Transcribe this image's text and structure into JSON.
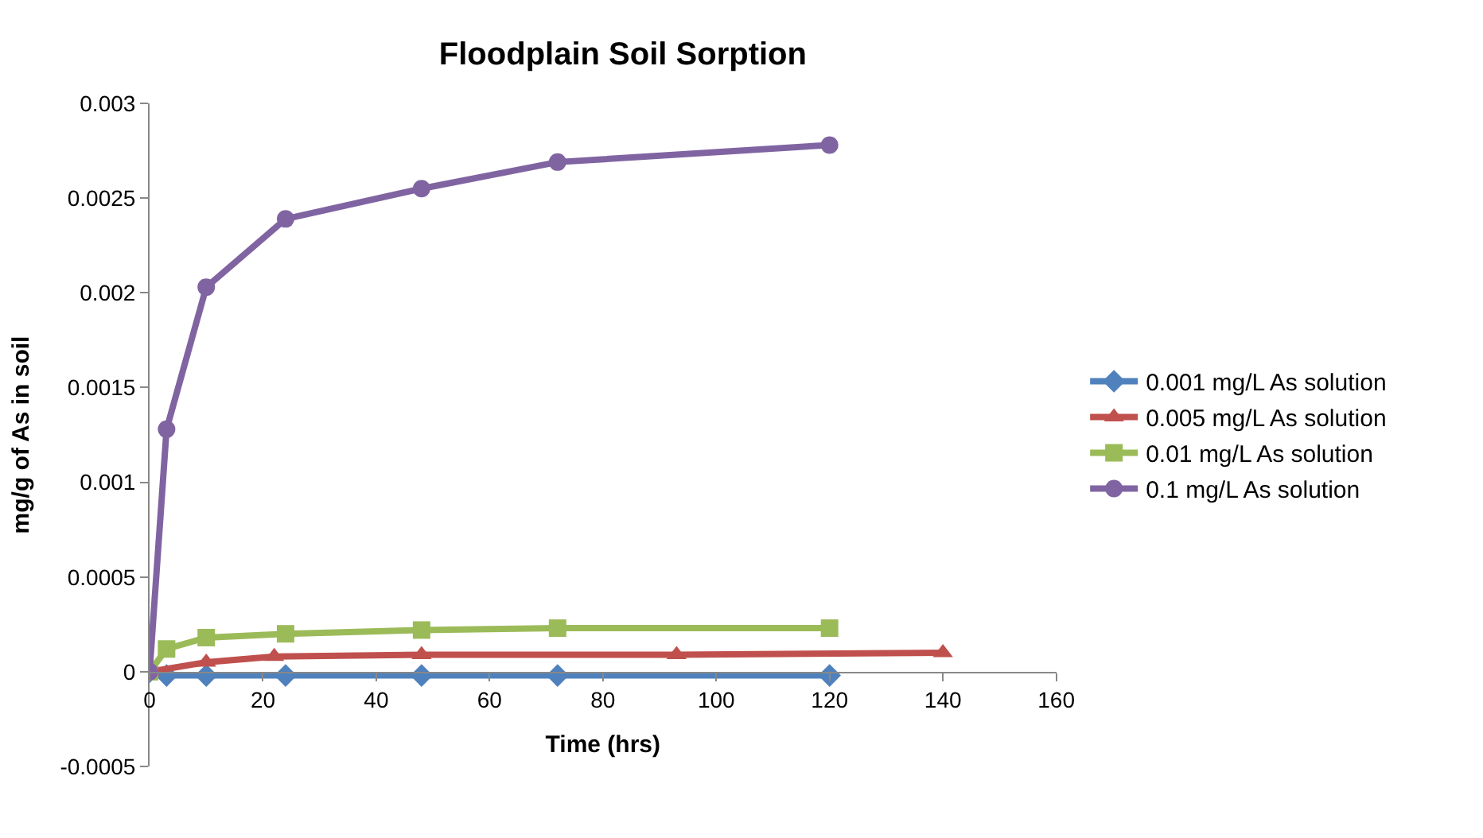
{
  "chart_data": {
    "type": "line",
    "title": "Floodplain Soil Sorption",
    "xlabel": "Time (hrs)",
    "ylabel": "mg/g of As in soil",
    "xlim": [
      0,
      160
    ],
    "xticks": [
      0,
      20,
      40,
      60,
      80,
      100,
      120,
      140,
      160
    ],
    "ylim": [
      -0.0005,
      0.003
    ],
    "yticks": [
      -0.0005,
      0,
      0.0005,
      0.001,
      0.0015,
      0.002,
      0.0025,
      0.003
    ],
    "grid": false,
    "legend": "right",
    "series": [
      {
        "name": "0.001 mg/L As solution",
        "color": "#4f81bd",
        "marker": "diamond",
        "x": [
          0,
          3,
          10,
          24,
          48,
          72,
          120
        ],
        "values": [
          0,
          -2e-05,
          -2e-05,
          -2e-05,
          -2e-05,
          -2e-05,
          -2e-05
        ]
      },
      {
        "name": "0.005 mg/L As solution",
        "color": "#c0504d",
        "marker": "triangle",
        "x": [
          0,
          10,
          22,
          48,
          93,
          140
        ],
        "values": [
          0,
          5e-05,
          8e-05,
          9e-05,
          9e-05,
          0.0001
        ]
      },
      {
        "name": "0.01 mg/L As solution",
        "color": "#9bbb59",
        "marker": "square",
        "x": [
          0,
          3,
          10,
          24,
          48,
          72,
          120
        ],
        "values": [
          0,
          0.00012,
          0.00018,
          0.0002,
          0.00022,
          0.00023,
          0.00023
        ]
      },
      {
        "name": "0.1 mg/L As solution",
        "color": "#8064a2",
        "marker": "circle",
        "x": [
          0,
          3,
          10,
          24,
          48,
          72,
          120
        ],
        "values": [
          0,
          0.00128,
          0.00203,
          0.00239,
          0.00255,
          0.00269,
          0.00278
        ]
      }
    ]
  }
}
